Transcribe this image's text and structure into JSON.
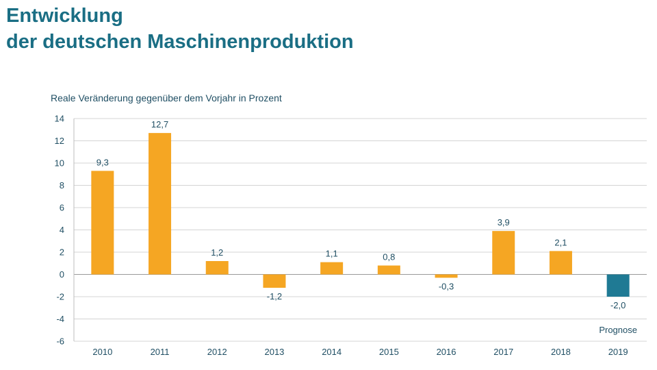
{
  "title": {
    "line1": "Entwicklung",
    "line2": "der deutschen Maschinenproduktion"
  },
  "chart_data": {
    "type": "bar",
    "ylabel": "Reale Veränderung gegenüber dem Vorjahr in Prozent",
    "xlabel": "",
    "categories": [
      "2010",
      "2011",
      "2012",
      "2013",
      "2014",
      "2015",
      "2016",
      "2017",
      "2018",
      "2019"
    ],
    "values": [
      9.3,
      12.7,
      1.2,
      -1.2,
      1.1,
      0.8,
      -0.3,
      3.9,
      2.1,
      -2.0
    ],
    "data_labels": [
      "9,3",
      "12,7",
      "1,2",
      "-1,2",
      "1,1",
      "0,8",
      "-0,3",
      "3,9",
      "2,1",
      "-2,0"
    ],
    "ylim": [
      -6,
      14
    ],
    "yticks": [
      14,
      12,
      10,
      8,
      6,
      4,
      2,
      0,
      -2,
      -4,
      -6
    ],
    "grid": true,
    "annotations": [
      {
        "category": "2019",
        "text": "Prognose"
      }
    ],
    "colors": {
      "actual": "#f5a623",
      "forecast": "#1f7a94"
    },
    "forecast_categories": [
      "2019"
    ]
  }
}
